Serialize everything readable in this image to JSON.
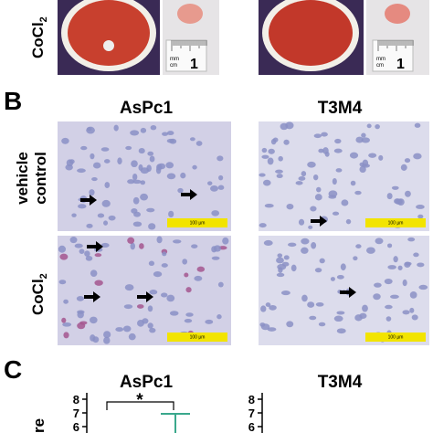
{
  "panel_a": {
    "row_label": {
      "text": "CoCl",
      "sub": "2"
    },
    "rulers": [
      {
        "unit_top": "mm",
        "unit_bottom": "cm",
        "number": "1"
      },
      {
        "unit_top": "mm",
        "unit_bottom": "cm",
        "number": "1"
      }
    ]
  },
  "panel_b": {
    "letter": "B",
    "columns": [
      "AsPc1",
      "T3M4"
    ],
    "row_labels": [
      [
        "vehicle",
        "control"
      ],
      {
        "text": "CoCl",
        "sub": "2"
      }
    ],
    "scale_bars": [
      "100 µm",
      "100 µm",
      "100 µm",
      "100 µm"
    ]
  },
  "panel_c": {
    "letter": "C",
    "titles": [
      "AsPc1",
      "T3M4"
    ],
    "significance": "*",
    "y_axis_label": "re",
    "left_yticks": [
      8,
      7,
      6
    ],
    "right_yticks": [
      8,
      7,
      6
    ]
  }
}
